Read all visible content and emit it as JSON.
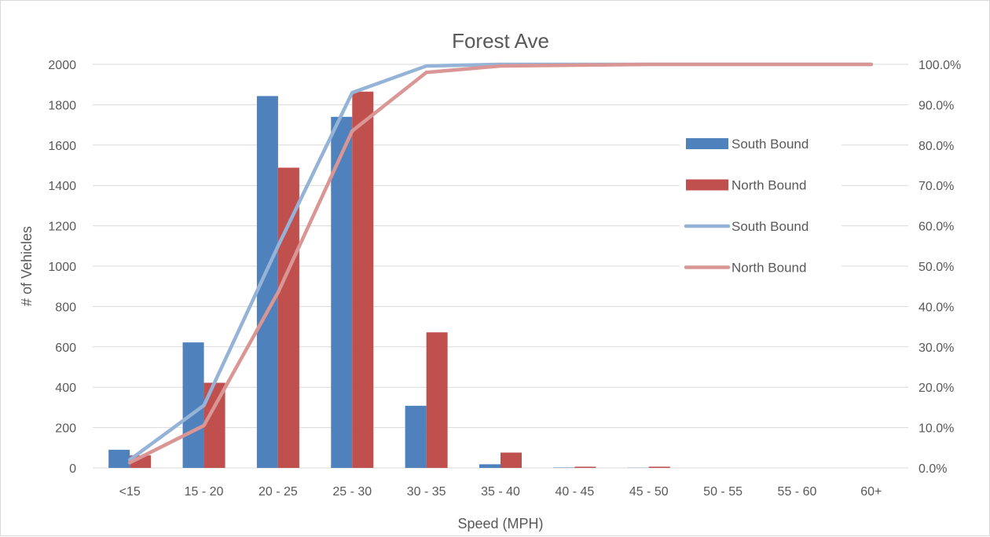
{
  "chart_data": {
    "type": "bar",
    "title": "Forest Ave",
    "xlabel": "Speed (MPH)",
    "ylabel": "# of Vehicles",
    "categories": [
      "<15",
      "15 - 20",
      "20 - 25",
      "25 - 30",
      "30 - 35",
      "35 - 40",
      "40 - 45",
      "45 - 50",
      "50 - 55",
      "55 - 60",
      "60+"
    ],
    "ylim": [
      0,
      2000
    ],
    "yticks": [
      "0",
      "200",
      "400",
      "600",
      "800",
      "1000",
      "1200",
      "1400",
      "1600",
      "1800",
      "2000"
    ],
    "y2lim": [
      0,
      100
    ],
    "y2ticks": [
      "0.0%",
      "10.0%",
      "20.0%",
      "30.0%",
      "40.0%",
      "50.0%",
      "60.0%",
      "70.0%",
      "80.0%",
      "90.0%",
      "100.0%"
    ],
    "grid": true,
    "legend_position": "right",
    "bar_series": [
      {
        "name": "South Bound",
        "color": "#4f81bd",
        "values": [
          90,
          622,
          1843,
          1740,
          308,
          18,
          2,
          1,
          0,
          0,
          0
        ]
      },
      {
        "name": "North Bound",
        "color": "#c0504d",
        "values": [
          62,
          422,
          1488,
          1865,
          672,
          76,
          6,
          6,
          0,
          0,
          0
        ]
      }
    ],
    "line_series": [
      {
        "name": "South Bound",
        "color": "#95b3d7",
        "axis": "right",
        "values": [
          2.0,
          15.5,
          55.0,
          93.0,
          99.6,
          100.0,
          100.0,
          100.0,
          100.0,
          100.0,
          100.0
        ]
      },
      {
        "name": "North Bound",
        "color": "#d99694",
        "axis": "right",
        "values": [
          1.3,
          10.5,
          43.5,
          83.5,
          98.0,
          99.6,
          99.8,
          100.0,
          100.0,
          100.0,
          100.0
        ]
      }
    ]
  }
}
